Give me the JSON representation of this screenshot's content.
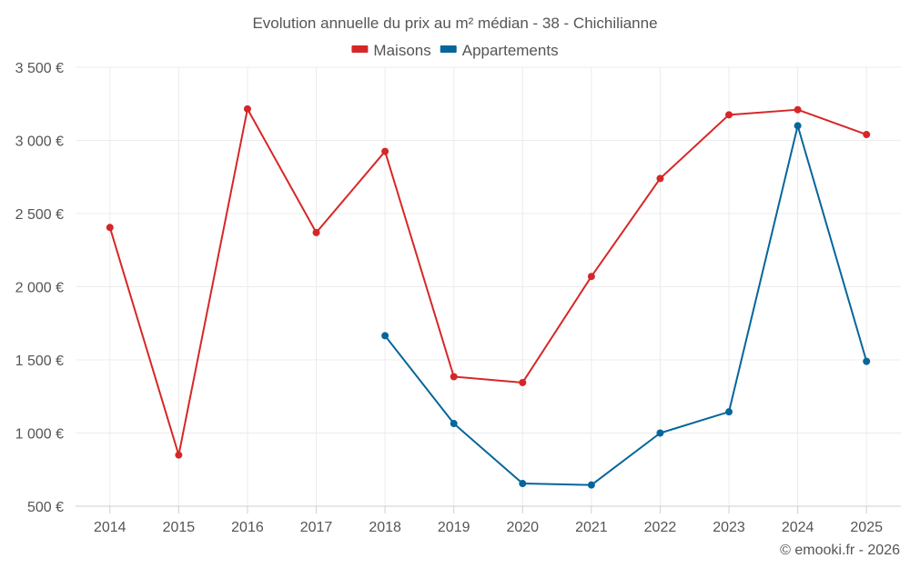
{
  "chart_data": {
    "type": "line",
    "title": "Evolution annuelle du prix au m² médian - 38 - Chichilianne",
    "categories": [
      "2014",
      "2015",
      "2016",
      "2017",
      "2018",
      "2019",
      "2020",
      "2021",
      "2022",
      "2023",
      "2024",
      "2025"
    ],
    "series": [
      {
        "name": "Maisons",
        "color": "#d62728",
        "values": [
          2405,
          850,
          3215,
          2370,
          2925,
          1385,
          1345,
          2070,
          2740,
          3175,
          3210,
          3040
        ]
      },
      {
        "name": "Appartements",
        "color": "#05669b",
        "values": [
          null,
          null,
          null,
          null,
          1665,
          1065,
          655,
          645,
          1000,
          1145,
          3100,
          1490
        ]
      }
    ],
    "ylim": [
      500,
      3500
    ],
    "yticks": [
      500,
      1000,
      1500,
      2000,
      2500,
      3000,
      3500
    ],
    "ytick_labels": [
      "500 €",
      "1 000 €",
      "1 500 €",
      "2 000 €",
      "2 500 €",
      "3 000 €",
      "3 500 €"
    ],
    "grid": true,
    "legend_position": "top-center"
  },
  "credit": "© emooki.fr - 2026"
}
